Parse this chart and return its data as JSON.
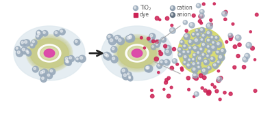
{
  "tio2_label": "TiO₂",
  "dye_label": "dye",
  "cation_label": "cation",
  "anion_label": "anion",
  "tio2_color": "#99aabb",
  "dye_color": "#cc2255",
  "cation_color": "#8899aa",
  "anion_color": "#556677",
  "blob_color": "#dde8ee",
  "olive_color": "#c8cc88",
  "white_ring_color": "#ffffff",
  "magenta_color": "#dd44aa",
  "tio2_ball_color": "#99aabb",
  "zoom_base_color": "#d4d866",
  "background": "#ffffff",
  "arrow_color": "#222222",
  "line_color": "#aaaaaa",
  "text_color": "#555555"
}
